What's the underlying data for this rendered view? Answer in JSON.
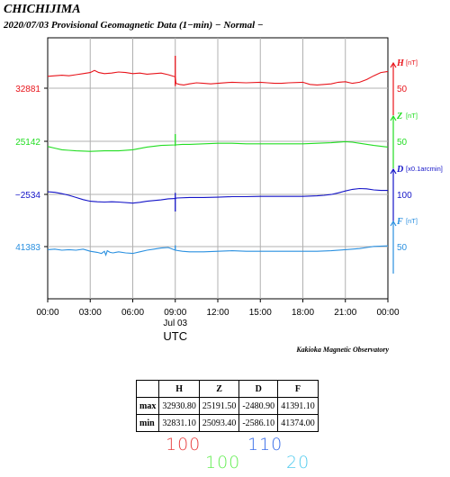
{
  "station": "CHICHIJIMA",
  "subtitle": "2020/07/03  Provisional Geomagnetic Data (1−min)  − Normal −",
  "credit": "Kakioka Magnetic Observatory",
  "chart_data": {
    "type": "line",
    "x_ticks": [
      "00:00",
      "03:00",
      "06:00",
      "09:00",
      "12:00",
      "15:00",
      "18:00",
      "21:00",
      "00:00"
    ],
    "x_sublabel": "Jul 03",
    "xlabel": "UTC",
    "xlim_hours": [
      0,
      24
    ],
    "grid": true,
    "colors": {
      "H": "#e8141b",
      "Z": "#22dd22",
      "D": "#1414c8",
      "F": "#2a90e0"
    },
    "series": [
      {
        "name": "H",
        "unit": "[nT]",
        "left_value": "32881",
        "scale_label": "50",
        "base": 32881,
        "scale": 50,
        "ylim": [
          32836,
          32936
        ],
        "points": [
          [
            0,
            32898
          ],
          [
            0.5,
            32899
          ],
          [
            1,
            32900
          ],
          [
            1.5,
            32899
          ],
          [
            2,
            32901
          ],
          [
            2.5,
            32903
          ],
          [
            3,
            32905
          ],
          [
            3.3,
            32909
          ],
          [
            3.6,
            32905
          ],
          [
            4,
            32903
          ],
          [
            4.5,
            32904
          ],
          [
            5,
            32906
          ],
          [
            5.5,
            32905
          ],
          [
            6,
            32903
          ],
          [
            6.5,
            32904
          ],
          [
            7,
            32902
          ],
          [
            7.5,
            32903
          ],
          [
            8,
            32904
          ],
          [
            8.5,
            32901
          ],
          [
            9,
            32897
          ],
          [
            9.05,
            32885
          ],
          [
            9.3,
            32883
          ],
          [
            9.6,
            32882
          ],
          [
            10,
            32884
          ],
          [
            10.5,
            32886
          ],
          [
            11,
            32885
          ],
          [
            11.5,
            32884
          ],
          [
            12,
            32885
          ],
          [
            13,
            32887
          ],
          [
            14,
            32886
          ],
          [
            15,
            32887
          ],
          [
            15.5,
            32886
          ],
          [
            16,
            32885
          ],
          [
            16.5,
            32885
          ],
          [
            17,
            32886
          ],
          [
            18,
            32887
          ],
          [
            18.5,
            32883
          ],
          [
            19,
            32882
          ],
          [
            19.5,
            32883
          ],
          [
            20,
            32884
          ],
          [
            20.5,
            32887
          ],
          [
            21,
            32888
          ],
          [
            21.5,
            32885
          ],
          [
            22,
            32887
          ],
          [
            22.5,
            32892
          ],
          [
            23,
            32899
          ],
          [
            23.5,
            32905
          ],
          [
            24,
            32907
          ]
        ],
        "spike": {
          "x": 9.0,
          "high": 32936,
          "low": 32880
        }
      },
      {
        "name": "Z",
        "unit": "[nT]",
        "left_value": "25142",
        "scale_label": "50",
        "base": 25142,
        "scale": 50,
        "ylim": [
          25097,
          25197
        ],
        "points": [
          [
            0,
            25139
          ],
          [
            0.5,
            25136
          ],
          [
            1,
            25133
          ],
          [
            1.5,
            25132
          ],
          [
            2,
            25131
          ],
          [
            3,
            25130
          ],
          [
            4,
            25131
          ],
          [
            5,
            25131
          ],
          [
            6,
            25133
          ],
          [
            7,
            25138
          ],
          [
            8,
            25141
          ],
          [
            9,
            25142
          ],
          [
            9.5,
            25143
          ],
          [
            10,
            25143
          ],
          [
            11,
            25144
          ],
          [
            12,
            25145
          ],
          [
            13,
            25145
          ],
          [
            14,
            25144
          ],
          [
            15,
            25144
          ],
          [
            16,
            25144
          ],
          [
            17,
            25144
          ],
          [
            18,
            25144
          ],
          [
            19,
            25145
          ],
          [
            20,
            25146
          ],
          [
            21,
            25148
          ],
          [
            21.5,
            25147
          ],
          [
            22,
            25145
          ],
          [
            23,
            25141
          ],
          [
            24,
            25138
          ]
        ],
        "spike": {
          "x": 9.0,
          "high": 25162,
          "low": 25140
        }
      },
      {
        "name": "D",
        "unit": "[x0.1arcmin]",
        "left_value": "−2534",
        "scale_label": "100",
        "base": -2534,
        "scale": 100,
        "ylim": [
          -2624,
          -2424
        ],
        "points": [
          [
            0,
            -2501
          ],
          [
            0.5,
            -2503
          ],
          [
            1,
            -2508
          ],
          [
            1.5,
            -2514
          ],
          [
            2,
            -2522
          ],
          [
            2.5,
            -2530
          ],
          [
            3,
            -2536
          ],
          [
            3.5,
            -2538
          ],
          [
            4,
            -2539
          ],
          [
            4.5,
            -2538
          ],
          [
            5,
            -2539
          ],
          [
            6,
            -2543
          ],
          [
            6.5,
            -2540
          ],
          [
            7,
            -2536
          ],
          [
            8,
            -2531
          ],
          [
            8.5,
            -2527
          ],
          [
            9,
            -2526
          ],
          [
            9.1,
            -2524
          ],
          [
            10,
            -2522
          ],
          [
            11,
            -2522
          ],
          [
            12,
            -2521
          ],
          [
            13,
            -2519
          ],
          [
            14,
            -2519
          ],
          [
            15,
            -2518
          ],
          [
            16,
            -2518
          ],
          [
            17,
            -2518
          ],
          [
            18,
            -2518
          ],
          [
            19,
            -2516
          ],
          [
            19.5,
            -2514
          ],
          [
            20,
            -2511
          ],
          [
            20.5,
            -2505
          ],
          [
            21,
            -2498
          ],
          [
            21.5,
            -2492
          ],
          [
            22,
            -2489
          ],
          [
            22.5,
            -2490
          ],
          [
            23,
            -2494
          ],
          [
            23.5,
            -2496
          ],
          [
            24,
            -2496
          ]
        ],
        "spike": {
          "x": 9.0,
          "high": -2505,
          "low": -2574
        }
      },
      {
        "name": "F",
        "unit": "[nT]",
        "left_value": "41383",
        "scale_label": "50",
        "base": 41383,
        "scale": 50,
        "ylim": [
          41338,
          41438
        ],
        "points": [
          [
            0,
            41384
          ],
          [
            0.5,
            41385
          ],
          [
            1,
            41383
          ],
          [
            1.5,
            41384
          ],
          [
            2,
            41383
          ],
          [
            2.5,
            41385
          ],
          [
            3,
            41381
          ],
          [
            3.5,
            41379
          ],
          [
            3.8,
            41377
          ],
          [
            4,
            41381
          ],
          [
            4.1,
            41374
          ],
          [
            4.2,
            41382
          ],
          [
            4.4,
            41379
          ],
          [
            4.6,
            41378
          ],
          [
            5,
            41380
          ],
          [
            5.5,
            41378
          ],
          [
            6,
            41377
          ],
          [
            6.5,
            41380
          ],
          [
            7,
            41383
          ],
          [
            7.5,
            41385
          ],
          [
            8,
            41387
          ],
          [
            8.5,
            41388
          ],
          [
            9,
            41383
          ],
          [
            9.5,
            41381
          ],
          [
            10,
            41380
          ],
          [
            11,
            41380
          ],
          [
            12,
            41381
          ],
          [
            13,
            41382
          ],
          [
            14,
            41381
          ],
          [
            15,
            41381
          ],
          [
            16,
            41381
          ],
          [
            17,
            41381
          ],
          [
            18,
            41381
          ],
          [
            19,
            41381
          ],
          [
            20,
            41382
          ],
          [
            21,
            41384
          ],
          [
            21.5,
            41385
          ],
          [
            22,
            41386
          ],
          [
            22.5,
            41388
          ],
          [
            23,
            41390
          ],
          [
            24,
            41391
          ]
        ],
        "spike": {
          "x": 9.0,
          "high": 41392,
          "low": 41383
        }
      }
    ]
  },
  "table": {
    "headers": [
      "",
      "H",
      "Z",
      "D",
      "F"
    ],
    "rows": [
      {
        "label": "max",
        "values": [
          "32930.80",
          "25191.50",
          "-2480.90",
          "41391.10"
        ]
      },
      {
        "label": "min",
        "values": [
          "32831.10",
          "25093.40",
          "-2586.10",
          "41374.00"
        ]
      }
    ]
  },
  "handwritten": [
    {
      "text": "100",
      "color": "#e84040"
    },
    {
      "text": "100",
      "color": "#66ee55"
    },
    {
      "text": "110",
      "color": "#3a6ee8"
    },
    {
      "text": "20",
      "color": "#55ccee"
    }
  ]
}
